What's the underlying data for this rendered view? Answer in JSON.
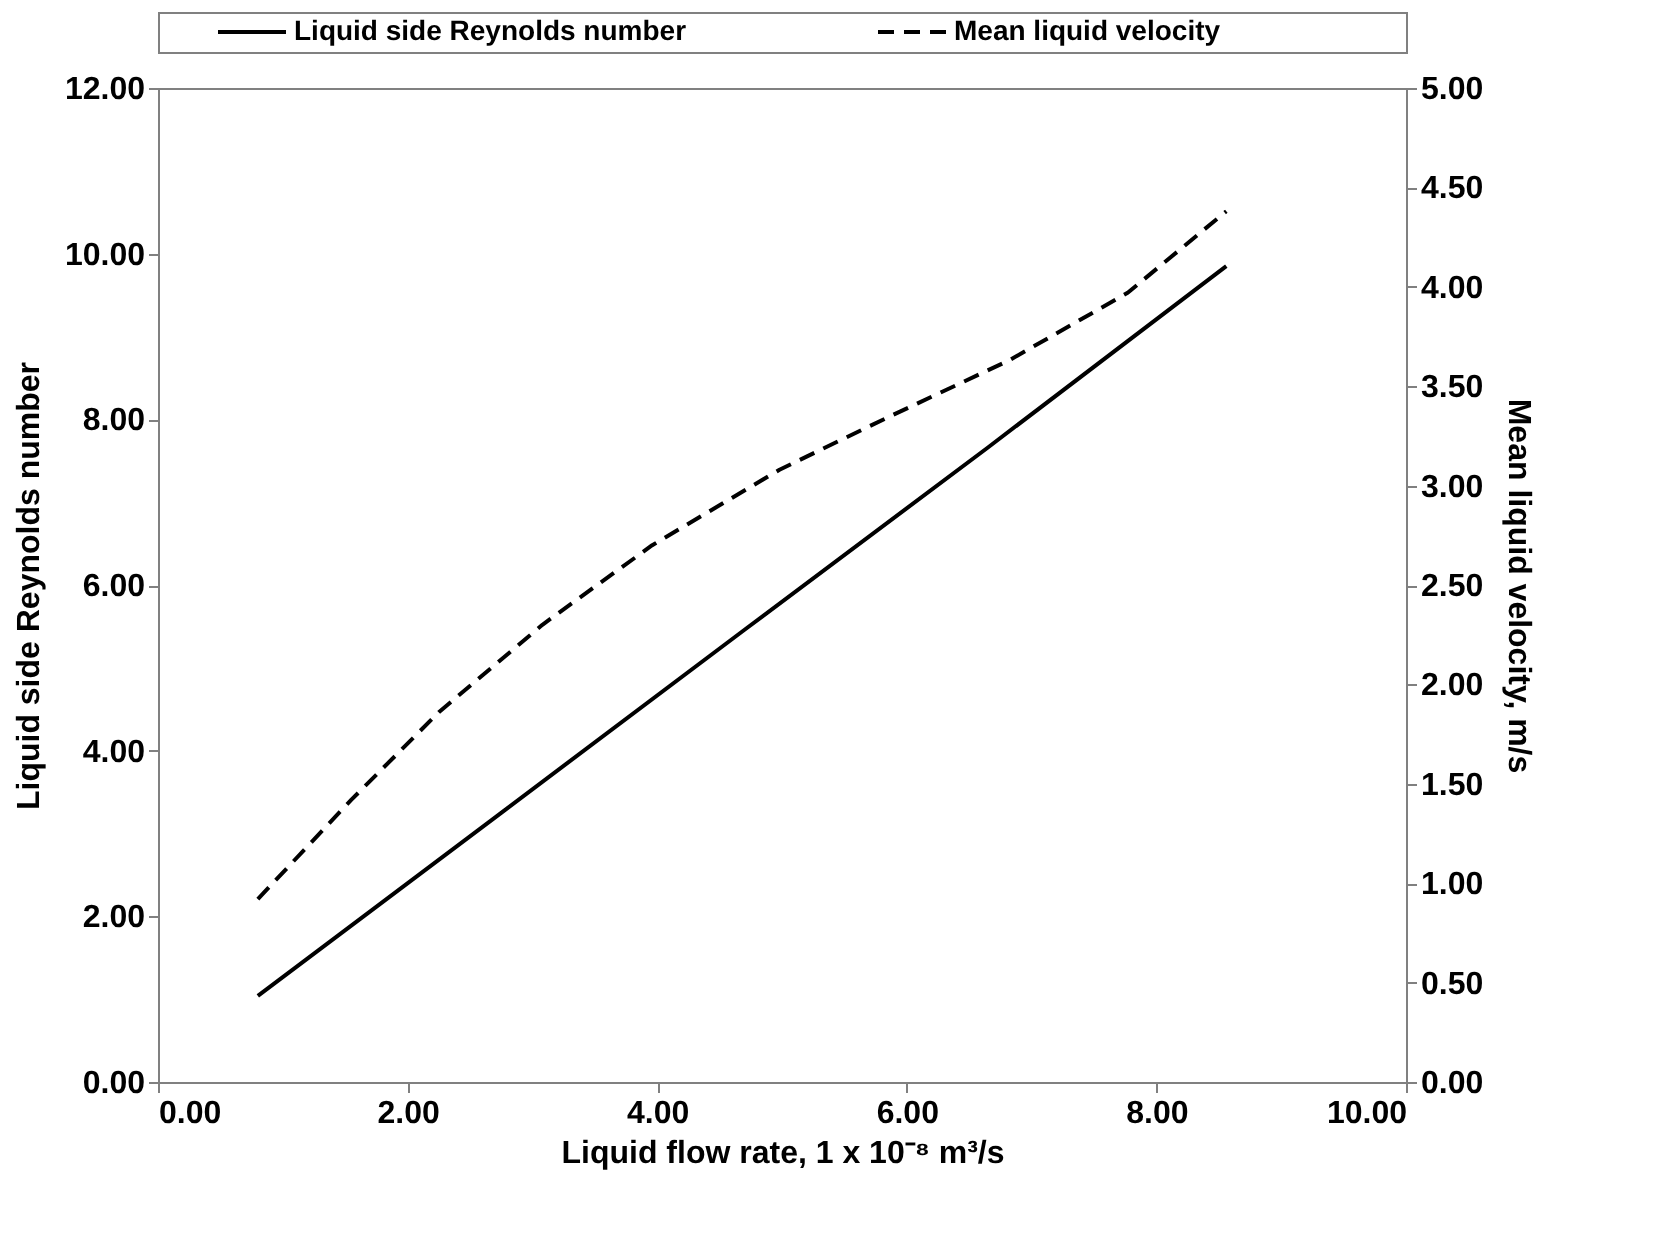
{
  "chart_data": {
    "type": "line",
    "xlabel": "Liquid flow rate, 1 x 10⁻⁸ m³/s",
    "ylabel": "Liquid side Reynolds number",
    "y2label": "Mean liquid velocity, m/s",
    "xlim": [
      0,
      10
    ],
    "xticks": [
      {
        "value": 0,
        "label": "0.00"
      },
      {
        "value": 2,
        "label": "2.00"
      },
      {
        "value": 4,
        "label": "4.00"
      },
      {
        "value": 6,
        "label": "6.00"
      },
      {
        "value": 8,
        "label": "8.00"
      },
      {
        "value": 10,
        "label": "10.00"
      }
    ],
    "ylim": [
      0,
      12
    ],
    "yticks": [
      {
        "value": 0,
        "label": "0.00"
      },
      {
        "value": 2,
        "label": "2.00"
      },
      {
        "value": 4,
        "label": "4.00"
      },
      {
        "value": 6,
        "label": "6.00"
      },
      {
        "value": 8,
        "label": "8.00"
      },
      {
        "value": 10,
        "label": "10.00"
      },
      {
        "value": 12,
        "label": "12.00"
      }
    ],
    "y2lim": [
      0,
      5
    ],
    "y2ticks": [
      {
        "value": 0,
        "label": "0.00"
      },
      {
        "value": 0.5,
        "label": "0.50"
      },
      {
        "value": 1,
        "label": "1.00"
      },
      {
        "value": 1.5,
        "label": "1.50"
      },
      {
        "value": 2,
        "label": "2.00"
      },
      {
        "value": 2.5,
        "label": "2.50"
      },
      {
        "value": 3,
        "label": "3.00"
      },
      {
        "value": 3.5,
        "label": "3.50"
      },
      {
        "value": 4,
        "label": "4.00"
      },
      {
        "value": 4.5,
        "label": "4.50"
      },
      {
        "value": 5,
        "label": "5.00"
      }
    ],
    "legend": "top",
    "grid": false,
    "series": [
      {
        "name": "Liquid side Reynolds number",
        "color": "#000000",
        "line_style": "solid",
        "x": [
          0.8,
          2.75,
          4.7,
          6.65,
          8.56
        ],
        "values": [
          1.04,
          3.25,
          5.46,
          7.66,
          9.85
        ]
      },
      {
        "name": "Mean liquid velocity",
        "color": "#000000",
        "line_style": "dashed",
        "axis": "y2",
        "x": [
          0.8,
          1.55,
          2.25,
          3.08,
          3.96,
          4.98,
          5.87,
          6.82,
          7.77,
          8.56
        ],
        "values": [
          0.92,
          1.42,
          1.86,
          2.3,
          2.7,
          3.08,
          3.35,
          3.63,
          3.97,
          4.38
        ]
      }
    ]
  }
}
